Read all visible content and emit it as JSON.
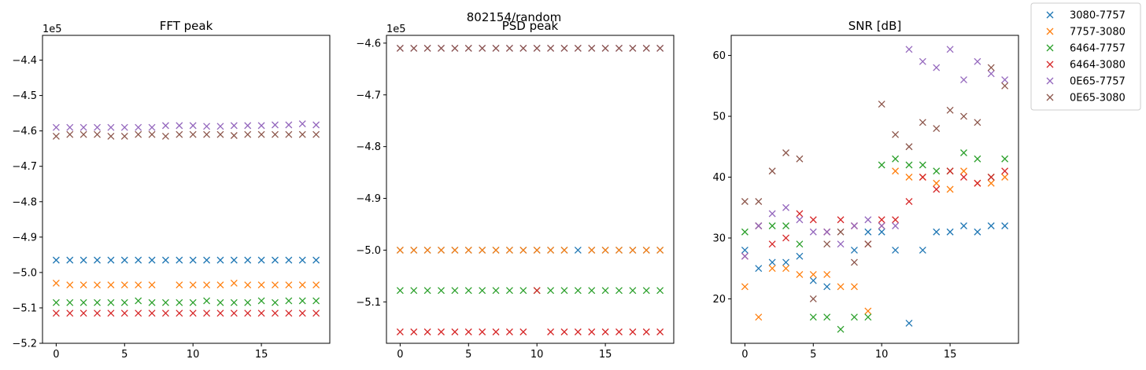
{
  "figure": {
    "suptitle": "802154/random"
  },
  "legend": {
    "placement": "upper-right-outside",
    "entries": [
      {
        "label": "3080-7757",
        "color": "#1f77b4"
      },
      {
        "label": "7757-3080",
        "color": "#ff7f0e"
      },
      {
        "label": "6464-7757",
        "color": "#2ca02c"
      },
      {
        "label": "6464-3080",
        "color": "#d62728"
      },
      {
        "label": "0E65-7757",
        "color": "#9467bd"
      },
      {
        "label": "0E65-3080",
        "color": "#8c564b"
      }
    ]
  },
  "chart_data": [
    {
      "type": "scatter",
      "title": "FFT peak",
      "marker": "x",
      "grid": false,
      "offset_label": "1e5",
      "xlim": [
        -1,
        20
      ],
      "ylim": [
        -5.2,
        -4.33
      ],
      "xticks": [
        0,
        5,
        10,
        15
      ],
      "yticks": [
        -5.2,
        -5.1,
        -5.0,
        -4.9,
        -4.8,
        -4.7,
        -4.6,
        -4.5,
        -4.4
      ],
      "ytick_labels": [
        "−5.2",
        "−5.1",
        "−5.0",
        "−4.9",
        "−4.8",
        "−4.7",
        "−4.6",
        "−4.5",
        "−4.4"
      ],
      "x": [
        0,
        1,
        2,
        3,
        4,
        5,
        6,
        7,
        8,
        9,
        10,
        11,
        12,
        13,
        14,
        15,
        16,
        17,
        18,
        19
      ],
      "series": [
        {
          "name": "3080-7757",
          "color": "#1f77b4",
          "values": [
            -4.965,
            -4.965,
            -4.965,
            -4.965,
            -4.965,
            -4.965,
            -4.965,
            -4.965,
            -4.965,
            -4.965,
            -4.965,
            -4.965,
            -4.965,
            -4.965,
            -4.965,
            -4.965,
            -4.965,
            -4.965,
            -4.965,
            -4.965
          ]
        },
        {
          "name": "7757-3080",
          "color": "#ff7f0e",
          "values": [
            -5.03,
            -5.035,
            -5.035,
            -5.035,
            -5.035,
            -5.035,
            -5.035,
            -5.035,
            null,
            -5.035,
            -5.035,
            -5.035,
            -5.035,
            -5.03,
            -5.035,
            -5.035,
            -5.035,
            -5.035,
            -5.035,
            -5.035
          ]
        },
        {
          "name": "6464-7757",
          "color": "#2ca02c",
          "values": [
            -5.085,
            -5.085,
            -5.085,
            -5.085,
            -5.085,
            -5.085,
            -5.08,
            -5.085,
            -5.085,
            -5.085,
            -5.085,
            -5.08,
            -5.085,
            -5.085,
            -5.085,
            -5.08,
            -5.085,
            -5.08,
            -5.08,
            -5.08
          ]
        },
        {
          "name": "6464-3080",
          "color": "#d62728",
          "values": [
            -5.115,
            -5.115,
            -5.115,
            -5.115,
            -5.115,
            -5.115,
            -5.115,
            -5.115,
            -5.115,
            -5.115,
            -5.115,
            -5.115,
            -5.115,
            -5.115,
            -5.115,
            -5.115,
            -5.115,
            -5.115,
            -5.115,
            -5.115
          ]
        },
        {
          "name": "0E65-7757",
          "color": "#9467bd",
          "values": [
            -4.59,
            -4.59,
            -4.59,
            -4.59,
            -4.59,
            -4.59,
            -4.59,
            -4.59,
            -4.585,
            -4.585,
            -4.585,
            -4.587,
            -4.587,
            -4.585,
            -4.585,
            -4.585,
            -4.583,
            -4.583,
            -4.58,
            -4.583
          ]
        },
        {
          "name": "0E65-3080",
          "color": "#8c564b",
          "values": [
            -4.615,
            -4.61,
            -4.61,
            -4.61,
            -4.615,
            -4.615,
            -4.61,
            -4.61,
            -4.615,
            -4.61,
            -4.61,
            -4.61,
            -4.61,
            -4.613,
            -4.61,
            -4.61,
            -4.61,
            -4.61,
            -4.61,
            -4.61
          ]
        }
      ]
    },
    {
      "type": "scatter",
      "title": "PSD peak",
      "marker": "x",
      "grid": false,
      "offset_label": "1e5",
      "xlim": [
        -1,
        20
      ],
      "ylim": [
        -5.18,
        -4.585
      ],
      "xticks": [
        0,
        5,
        10,
        15
      ],
      "yticks": [
        -5.1,
        -5.0,
        -4.9,
        -4.8,
        -4.7,
        -4.6
      ],
      "ytick_labels": [
        "−5.1",
        "−5.0",
        "−4.9",
        "−4.8",
        "−4.7",
        "−4.6"
      ],
      "x": [
        0,
        1,
        2,
        3,
        4,
        5,
        6,
        7,
        8,
        9,
        10,
        11,
        12,
        13,
        14,
        15,
        16,
        17,
        18,
        19
      ],
      "series": [
        {
          "name": "3080-7757",
          "color": "#1f77b4",
          "values": [
            -5.0,
            -5.0,
            -5.0,
            -5.0,
            -5.0,
            -5.0,
            -5.0,
            -5.0,
            -5.0,
            -5.0,
            -5.0,
            -5.0,
            -5.0,
            -5.0,
            -5.0,
            -5.0,
            -5.0,
            -5.0,
            -5.0,
            -5.0
          ]
        },
        {
          "name": "7757-3080",
          "color": "#ff7f0e",
          "values": [
            -5.0,
            -5.0,
            -5.0,
            -5.0,
            -5.0,
            -5.0,
            -5.0,
            -5.0,
            -5.0,
            -5.0,
            -5.0,
            -5.0,
            -5.0,
            null,
            -5.0,
            -5.0,
            -5.0,
            -5.0,
            -5.0,
            -5.0
          ]
        },
        {
          "name": "6464-7757",
          "color": "#2ca02c",
          "values": [
            -5.078,
            -5.078,
            -5.078,
            -5.078,
            -5.078,
            -5.078,
            -5.078,
            -5.078,
            -5.078,
            -5.078,
            -5.078,
            -5.078,
            -5.078,
            -5.078,
            -5.078,
            -5.078,
            -5.078,
            -5.078,
            -5.078,
            -5.078
          ]
        },
        {
          "name": "6464-3080",
          "color": "#d62728",
          "values": [
            -5.158,
            -5.158,
            -5.158,
            -5.158,
            -5.158,
            -5.158,
            -5.158,
            -5.158,
            -5.158,
            -5.158,
            -5.078,
            -5.158,
            -5.158,
            -5.158,
            -5.158,
            -5.158,
            -5.158,
            -5.158,
            -5.158,
            -5.158
          ]
        },
        {
          "name": "0E65-7757",
          "color": "#9467bd",
          "values": [
            -4.61,
            -4.61,
            -4.61,
            -4.61,
            -4.61,
            -4.61,
            -4.61,
            -4.61,
            -4.61,
            -4.61,
            -4.61,
            -4.61,
            -4.61,
            -4.61,
            -4.61,
            -4.61,
            -4.61,
            -4.61,
            -4.61,
            -4.61
          ]
        },
        {
          "name": "0E65-3080",
          "color": "#8c564b",
          "values": [
            -4.61,
            -4.61,
            -4.61,
            -4.61,
            -4.61,
            -4.61,
            -4.61,
            -4.61,
            -4.61,
            -4.61,
            -4.61,
            -4.61,
            -4.61,
            -4.61,
            -4.61,
            -4.61,
            -4.61,
            -4.61,
            -4.61,
            -4.61
          ]
        }
      ]
    },
    {
      "type": "scatter",
      "title": "SNR [dB]",
      "marker": "x",
      "grid": false,
      "offset_label": "",
      "xlim": [
        -1,
        20
      ],
      "ylim": [
        12.7,
        63.3
      ],
      "xticks": [
        0,
        5,
        10,
        15
      ],
      "yticks": [
        20,
        30,
        40,
        50,
        60
      ],
      "ytick_labels": [
        "20",
        "30",
        "40",
        "50",
        "60"
      ],
      "x": [
        0,
        1,
        2,
        3,
        4,
        5,
        6,
        7,
        8,
        9,
        10,
        11,
        12,
        13,
        14,
        15,
        16,
        17,
        18,
        19
      ],
      "series": [
        {
          "name": "3080-7757",
          "color": "#1f77b4",
          "values": [
            28,
            25,
            26,
            26,
            27,
            23,
            22,
            null,
            28,
            31,
            31,
            28,
            16,
            28,
            31,
            31,
            32,
            31,
            32,
            32
          ]
        },
        {
          "name": "7757-3080",
          "color": "#ff7f0e",
          "values": [
            22,
            17,
            25,
            25,
            24,
            24,
            24,
            22,
            22,
            18,
            32,
            41,
            40,
            40,
            39,
            38,
            41,
            39,
            39,
            40
          ]
        },
        {
          "name": "6464-7757",
          "color": "#2ca02c",
          "values": [
            31,
            32,
            32,
            32,
            29,
            17,
            17,
            15,
            17,
            17,
            42,
            43,
            42,
            42,
            41,
            41,
            44,
            43,
            40,
            43
          ]
        },
        {
          "name": "6464-3080",
          "color": "#d62728",
          "values": [
            27,
            32,
            29,
            30,
            34,
            33,
            31,
            33,
            32,
            29,
            33,
            33,
            36,
            40,
            38,
            41,
            40,
            39,
            40,
            41
          ]
        },
        {
          "name": "0E65-7757",
          "color": "#9467bd",
          "values": [
            27,
            32,
            34,
            35,
            33,
            31,
            31,
            29,
            32,
            33,
            32,
            32,
            61,
            59,
            58,
            61,
            56,
            59,
            57,
            56
          ]
        },
        {
          "name": "0E65-3080",
          "color": "#8c564b",
          "values": [
            36,
            36,
            41,
            44,
            43,
            20,
            29,
            31,
            26,
            29,
            52,
            47,
            45,
            49,
            48,
            51,
            50,
            49,
            58,
            55
          ]
        }
      ]
    }
  ]
}
